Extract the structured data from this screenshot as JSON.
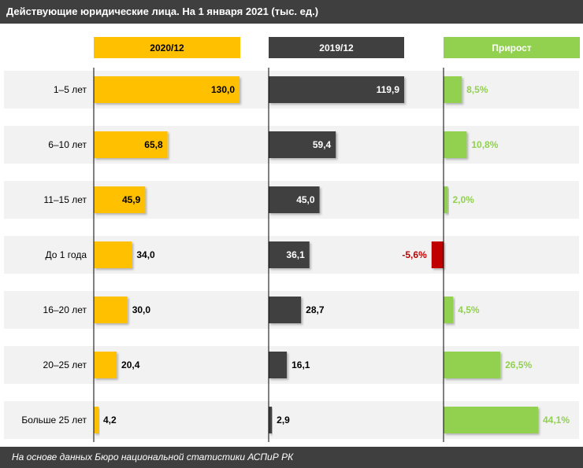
{
  "title": "Действующие юридические лица. На 1 января 2021 (тыс. ед.)",
  "footer": "На основе данных Бюро национальной статистики  АСПиР РК",
  "chart_data": {
    "type": "bar",
    "orientation": "horizontal",
    "categories": [
      "1–5 лет",
      "6–10 лет",
      "11–15  лет",
      "До 1 года",
      "16–20 лет",
      "20–25  лет",
      "Больше 25 лет"
    ],
    "series": [
      {
        "name": "2020/12",
        "values": [
          130.0,
          65.8,
          45.9,
          34.0,
          30.0,
          20.4,
          4.2
        ],
        "labels": [
          "130,0",
          "65,8",
          "45,9",
          "34,0",
          "30,0",
          "20,4",
          "4,2"
        ],
        "color": "#ffc000",
        "label_color": "#000000"
      },
      {
        "name": "2019/12",
        "values": [
          119.9,
          59.4,
          45.0,
          36.1,
          28.7,
          16.1,
          2.9
        ],
        "labels": [
          "119,9",
          "59,4",
          "45,0",
          "36,1",
          "28,7",
          "16,1",
          "2,9"
        ],
        "color": "#404040",
        "label_color": "#ffffff"
      },
      {
        "name": "Прирост",
        "values": [
          8.5,
          10.8,
          2.0,
          -5.6,
          4.5,
          26.5,
          44.1
        ],
        "labels": [
          "8,5%",
          "10,8%",
          "2,0%",
          "-5,6%",
          "4,5%",
          "26,5%",
          "44,1%"
        ],
        "color": "#92d050",
        "negative_color": "#c00000",
        "label_color": "#92d050",
        "negative_label_color": "#c00000"
      }
    ],
    "band_color": "#f2f2f2"
  }
}
